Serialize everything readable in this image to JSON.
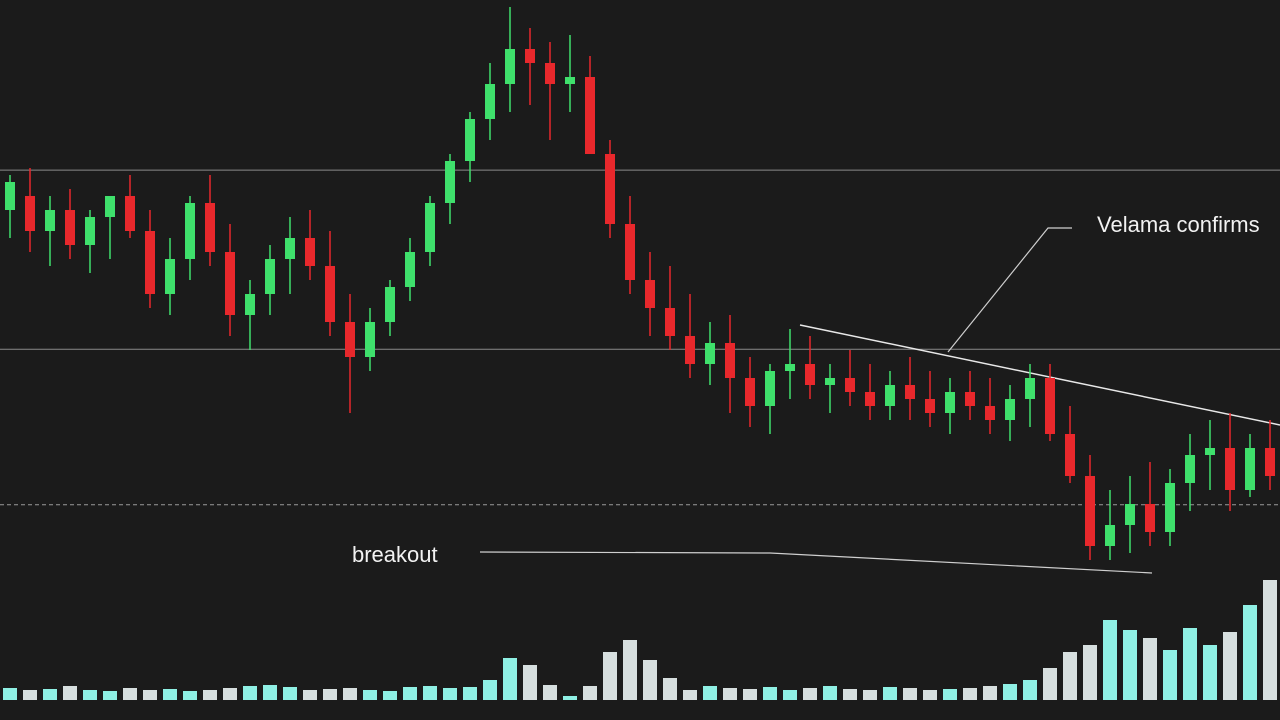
{
  "chart_data": {
    "type": "candlestick",
    "annotations": [
      "Velama confirms",
      "breakout"
    ],
    "ylim": [
      0,
      100
    ],
    "levels": [
      75.7,
      50.1
    ],
    "support": 27.9,
    "up_color": "#3fe06c",
    "down_color": "#e8282c",
    "open": [
      70,
      72,
      67,
      70,
      65,
      69,
      72,
      67,
      58,
      63,
      71,
      64,
      55,
      58,
      63,
      66,
      62,
      54,
      49,
      54,
      59,
      64,
      71,
      77,
      83,
      88,
      93,
      91,
      88,
      89,
      78,
      68,
      60,
      56,
      52,
      48,
      51,
      46,
      42,
      47,
      48,
      45,
      46,
      44,
      42,
      45,
      43,
      41,
      44,
      42,
      40,
      43,
      46,
      38,
      32,
      22,
      25,
      28,
      24,
      31,
      35,
      36,
      30,
      36
    ],
    "high": [
      75,
      76,
      72,
      73,
      70,
      72,
      75,
      70,
      66,
      72,
      75,
      68,
      60,
      65,
      69,
      70,
      67,
      58,
      56,
      60,
      66,
      72,
      78,
      84,
      91,
      99,
      96,
      94,
      95,
      92,
      80,
      72,
      64,
      62,
      58,
      54,
      55,
      49,
      48,
      53,
      52,
      48,
      50,
      48,
      47,
      49,
      47,
      46,
      47,
      46,
      45,
      48,
      48,
      42,
      35,
      30,
      32,
      34,
      33,
      38,
      40,
      41,
      38,
      40
    ],
    "low": [
      66,
      64,
      62,
      63,
      61,
      63,
      66,
      56,
      55,
      60,
      62,
      52,
      50,
      55,
      58,
      60,
      52,
      41,
      47,
      52,
      57,
      62,
      68,
      74,
      80,
      84,
      85,
      80,
      84,
      78,
      66,
      58,
      52,
      50,
      46,
      45,
      41,
      39,
      38,
      43,
      43,
      41,
      42,
      40,
      40,
      40,
      39,
      38,
      40,
      38,
      37,
      39,
      37,
      31,
      20,
      20,
      21,
      22,
      22,
      27,
      30,
      27,
      29,
      30
    ],
    "close": [
      74,
      67,
      70,
      65,
      69,
      72,
      67,
      58,
      63,
      71,
      64,
      55,
      58,
      63,
      66,
      62,
      54,
      49,
      54,
      59,
      64,
      71,
      77,
      83,
      88,
      93,
      91,
      88,
      89,
      78,
      68,
      60,
      56,
      52,
      48,
      51,
      46,
      42,
      47,
      48,
      45,
      46,
      44,
      42,
      45,
      43,
      41,
      44,
      42,
      40,
      43,
      46,
      38,
      32,
      22,
      25,
      28,
      24,
      31,
      35,
      36,
      30,
      36,
      32
    ],
    "volume": [
      12,
      10,
      11,
      14,
      10,
      9,
      12,
      10,
      11,
      9,
      10,
      12,
      14,
      15,
      13,
      10,
      11,
      12,
      10,
      9,
      13,
      14,
      12,
      13,
      20,
      42,
      35,
      15,
      4,
      14,
      48,
      60,
      40,
      22,
      10,
      14,
      12,
      11,
      13,
      10,
      12,
      14,
      11,
      10,
      13,
      12,
      10,
      11,
      12,
      14,
      16,
      20,
      32,
      48,
      55,
      80,
      70,
      62,
      50,
      72,
      55,
      68,
      95,
      120
    ],
    "volume_lim": [
      0,
      140
    ],
    "volume_up_color": "#8ff0e4",
    "volume_down_color": "#d6dede"
  }
}
